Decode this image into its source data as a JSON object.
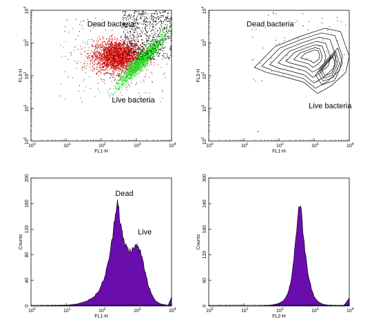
{
  "chart_data": [
    {
      "type": "scatter",
      "panel": "top-left",
      "xlabel": "FL1-H",
      "ylabel": "FL3-H",
      "xscale": "log",
      "yscale": "log",
      "xlim": [
        1,
        10000
      ],
      "ylim": [
        1,
        10000
      ],
      "xticks": [
        "10",
        "10",
        "10",
        "10",
        "10"
      ],
      "xtick_exponents": [
        "0",
        "1",
        "2",
        "3",
        "4"
      ],
      "yticks": [
        "10",
        "10",
        "10",
        "10",
        "10"
      ],
      "ytick_exponents": [
        "0",
        "1",
        "2",
        "3",
        "4"
      ],
      "annotations": [
        {
          "text": "Dead bacteria",
          "x": 40,
          "y": 3200
        },
        {
          "text": "Live bacteria",
          "x": 200,
          "y": 15
        }
      ],
      "series": [
        {
          "color": "#cc0000",
          "cluster_center": [
            280,
            400
          ],
          "cluster_spread": [
            6,
            3.5
          ]
        },
        {
          "color": "#22dd22",
          "cluster_center": [
            1400,
            300
          ],
          "cluster_spread": [
            4,
            6
          ]
        },
        {
          "color": "#000000",
          "cluster_center": [
            3000,
            2500
          ],
          "cluster_spread": [
            4,
            5
          ]
        }
      ]
    },
    {
      "type": "contour",
      "panel": "top-right",
      "xlabel": "FL1-H",
      "ylabel": "FL3-H",
      "xscale": "log",
      "yscale": "log",
      "xlim": [
        1,
        10000
      ],
      "ylim": [
        1,
        10000
      ],
      "xticks": [
        "10",
        "10",
        "10",
        "10",
        "10"
      ],
      "xtick_exponents": [
        "0",
        "1",
        "2",
        "3",
        "4"
      ],
      "yticks": [
        "10",
        "10",
        "10",
        "10",
        "10"
      ],
      "ytick_exponents": [
        "0",
        "1",
        "2",
        "3",
        "4"
      ],
      "annotations": [
        {
          "text": "Dead bacteria",
          "x": 12,
          "y": 3200
        },
        {
          "text": "Live bacteria",
          "x": 700,
          "y": 10
        }
      ]
    },
    {
      "type": "area",
      "panel": "bottom-left",
      "xlabel": "FL1-H",
      "ylabel": "Counts",
      "xscale": "log",
      "xlim": [
        1,
        10000
      ],
      "ylim": [
        0,
        200
      ],
      "xticks": [
        "10",
        "10",
        "10",
        "10",
        "10"
      ],
      "xtick_exponents": [
        "0",
        "1",
        "2",
        "3",
        "4"
      ],
      "yticks": [
        "0",
        "40",
        "80",
        "120",
        "160",
        "200"
      ],
      "color": "#6a0dad",
      "annotations": [
        {
          "text": "Dead",
          "x": 250,
          "y": 172
        },
        {
          "text": "Live",
          "x": 1100,
          "y": 112
        }
      ],
      "x": [
        1,
        10,
        20,
        40,
        60,
        80,
        100,
        130,
        160,
        200,
        240,
        280,
        310,
        340,
        380,
        420,
        480,
        550,
        650,
        800,
        900,
        1000,
        1150,
        1300,
        1500,
        1800,
        2200,
        2800,
        3500,
        5000,
        8000,
        10000
      ],
      "y": [
        0,
        1,
        3,
        8,
        14,
        21,
        32,
        48,
        70,
        100,
        138,
        166,
        158,
        135,
        118,
        104,
        96,
        90,
        86,
        88,
        92,
        95,
        90,
        84,
        72,
        52,
        32,
        17,
        8,
        3,
        1,
        14
      ]
    },
    {
      "type": "area",
      "panel": "bottom-right",
      "xlabel": "FL2-H",
      "ylabel": "Counts",
      "xscale": "log",
      "xlim": [
        1,
        10000
      ],
      "ylim": [
        0,
        300
      ],
      "xticks": [
        "10",
        "10",
        "10",
        "10",
        "10"
      ],
      "xtick_exponents": [
        "0",
        "1",
        "2",
        "3",
        "4"
      ],
      "yticks": [
        "0",
        "60",
        "120",
        "180",
        "240",
        "300"
      ],
      "color": "#6a0dad",
      "x": [
        1,
        30,
        60,
        100,
        140,
        180,
        220,
        260,
        300,
        340,
        380,
        420,
        460,
        520,
        600,
        700,
        850,
        1000,
        1300,
        1800,
        2500,
        4000,
        7000,
        10000
      ],
      "y": [
        0,
        0,
        2,
        6,
        14,
        30,
        60,
        105,
        160,
        210,
        238,
        228,
        195,
        150,
        105,
        70,
        40,
        22,
        10,
        4,
        2,
        1,
        1,
        18
      ]
    }
  ]
}
